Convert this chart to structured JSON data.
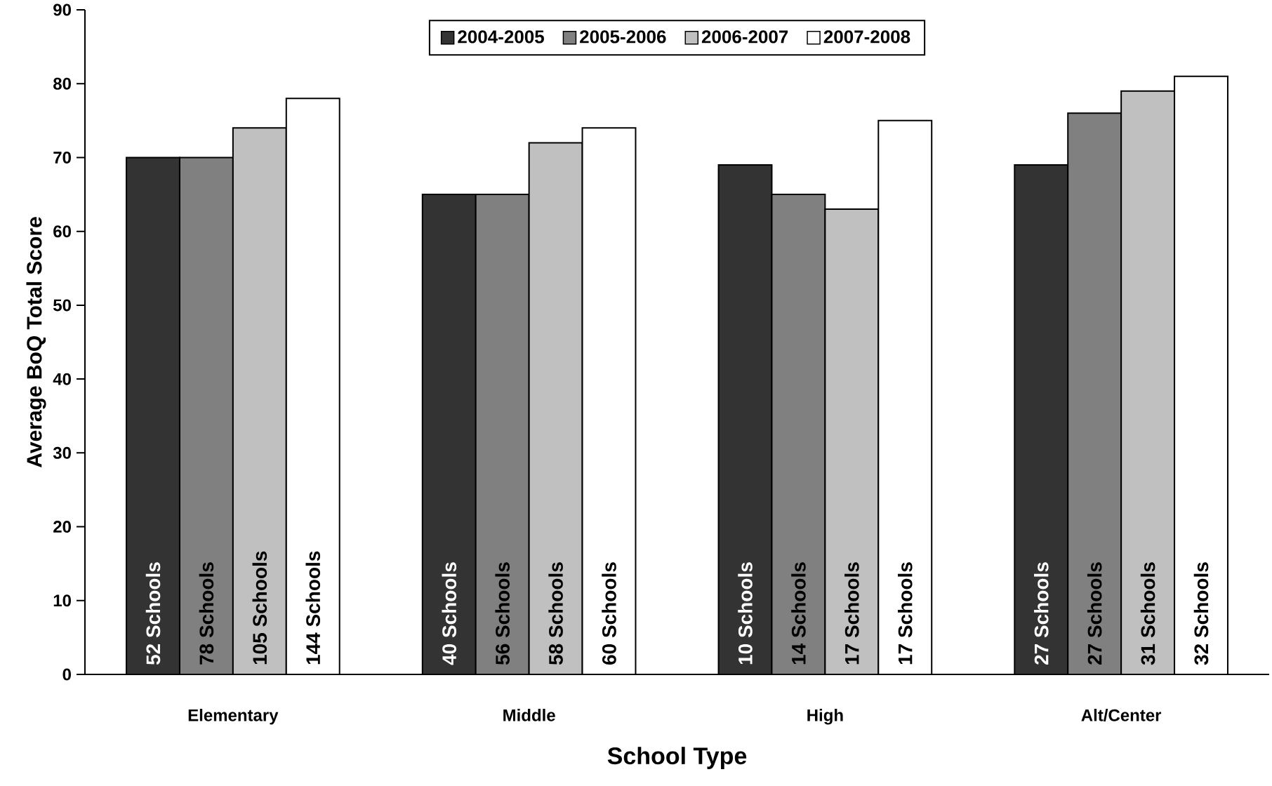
{
  "chart_data": {
    "type": "bar",
    "xlabel": "School Type",
    "ylabel": "Average BoQ Total Score",
    "categories": [
      "Elementary",
      "Middle",
      "High",
      "Alt/Center"
    ],
    "series": [
      {
        "name": "2004-2005",
        "color": "#333333",
        "values": [
          70,
          65,
          69,
          69
        ]
      },
      {
        "name": "2005-2006",
        "color": "#808080",
        "values": [
          70,
          65,
          65,
          76
        ]
      },
      {
        "name": "2006-2007",
        "color": "#c0c0c0",
        "values": [
          74,
          72,
          63,
          79
        ]
      },
      {
        "name": "2007-2008",
        "color": "#ffffff",
        "values": [
          78,
          74,
          75,
          81
        ]
      }
    ],
    "annotations": [
      "52 Schools",
      "78 Schools",
      "105 Schools",
      "144 Schools",
      "40 Schools",
      "56 Schools",
      "58 Schools",
      "60 Schools",
      "10 Schools",
      "14 Schools",
      "17 Schools",
      "17 Schools",
      "27 Schools",
      "27 Schools",
      "31 Schools",
      "32 Schools"
    ],
    "ylim": [
      0,
      90
    ],
    "yticks": [
      0,
      10,
      20,
      30,
      40,
      50,
      60,
      70,
      80,
      90
    ],
    "grid": false,
    "legend": "top"
  }
}
